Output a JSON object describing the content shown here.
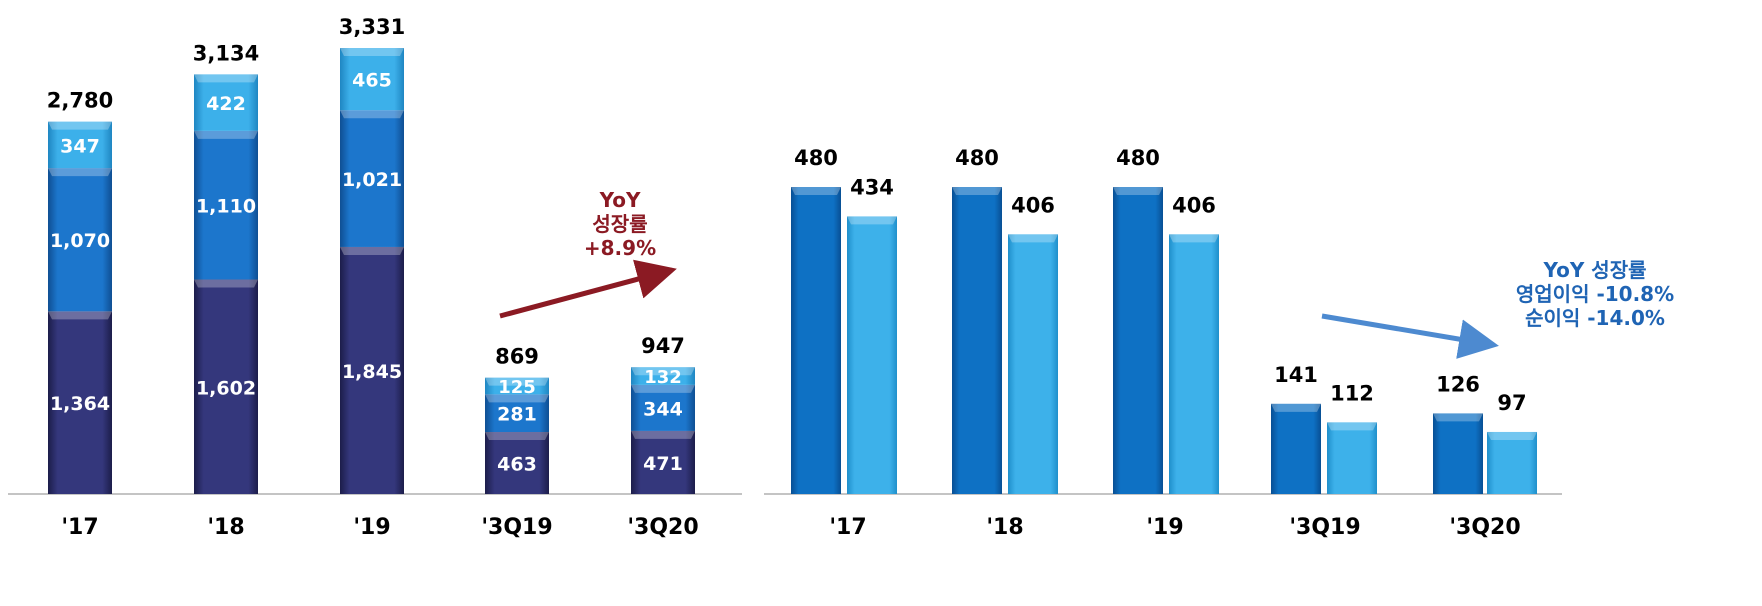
{
  "chart_data": [
    {
      "type": "bar",
      "stacked": true,
      "categories": [
        "'17",
        "'18",
        "'19",
        "'3Q19",
        "'3Q20"
      ],
      "series": [
        {
          "values": [
            1364,
            1602,
            1845,
            463,
            471
          ]
        },
        {
          "values": [
            1070,
            1110,
            1021,
            281,
            344
          ]
        },
        {
          "values": [
            347,
            422,
            465,
            125,
            132
          ]
        }
      ],
      "totals": [
        "2,780",
        "3,134",
        "3,331",
        "869",
        "947"
      ],
      "segment_labels": [
        [
          "1,364",
          "1,602",
          "1,845",
          "463",
          "471"
        ],
        [
          "1,070",
          "1,110",
          "1,021",
          "281",
          "344"
        ],
        [
          "347",
          "422",
          "465",
          "125",
          "132"
        ]
      ],
      "ylim": [
        0,
        3331
      ],
      "annotation": {
        "lines": [
          "YoY",
          "성장률",
          "+8.9%"
        ],
        "color": "#8b1a23"
      }
    },
    {
      "type": "bar",
      "categories": [
        "'17",
        "'18",
        "'19",
        "'3Q19",
        "'3Q20"
      ],
      "series": [
        {
          "values": [
            480,
            480,
            480,
            141,
            126
          ]
        },
        {
          "values": [
            434,
            406,
            406,
            112,
            97
          ]
        }
      ],
      "ylim": [
        0,
        480
      ],
      "annotation": {
        "lines": [
          "YoY 성장률",
          "영업이익 -10.8%",
          "순이익 -14.0%"
        ],
        "color": "#1f64b4"
      }
    }
  ],
  "colors": {
    "stack_bottom": "#2d2f6e",
    "stack_middle": "#1b6fc4",
    "stack_top": "#37a9e6",
    "bar_dark": "#0e6dbf",
    "bar_light": "#38ace8",
    "arrow_left": "#8b1a23",
    "arrow_right": "#4d8ad0"
  }
}
